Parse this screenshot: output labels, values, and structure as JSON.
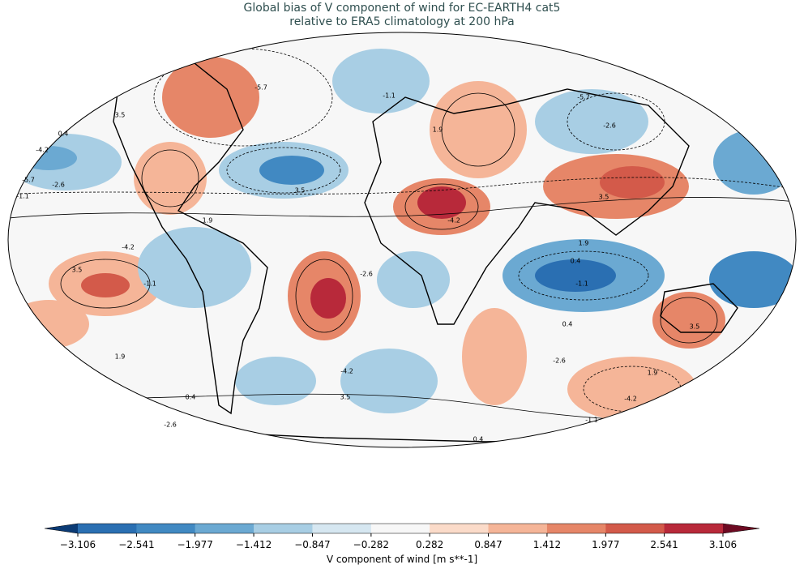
{
  "title": "Global bias of V component of wind for EC-EARTH4 cat5",
  "subtitle": "relative to ERA5 climatology at 200 hPa",
  "colorbar": {
    "label": "V component of wind [m s**-1]",
    "ticks": [
      {
        "value": -3.106,
        "label": "−3.106"
      },
      {
        "value": -2.541,
        "label": "−2.541"
      },
      {
        "value": -1.977,
        "label": "−1.977"
      },
      {
        "value": -1.412,
        "label": "−1.412"
      },
      {
        "value": -0.847,
        "label": "−0.847"
      },
      {
        "value": -0.282,
        "label": "−0.282"
      },
      0.282,
      0.847,
      1.412,
      1.977,
      2.541,
      3.106
    ],
    "colors": [
      "#2a6fb2",
      "#4189c2",
      "#6ba9d2",
      "#a8cee4",
      "#d6e7f1",
      "#f7f7f7",
      "#fbdbc9",
      "#f5b598",
      "#e68668",
      "#d35a4a",
      "#b8293a"
    ],
    "extend_low_color": "#0b3b75",
    "extend_high_color": "#6d0a22"
  },
  "contour_labels": [
    "3.5",
    "0.4",
    "-4.2",
    "-5.7",
    "-1.1",
    "-2.6",
    "1.9",
    "3.5",
    "-4.2",
    "-1.1",
    "1.9",
    "0.4",
    "3.5",
    "-2.6",
    "-4.2",
    "-5.7",
    "-1.1",
    "3.5",
    "1.9",
    "-4.2",
    "-5.7",
    "-2.6",
    "3.5",
    "0.4",
    "-1.1",
    "1.9",
    "0.4",
    "-2.6",
    "-4.2",
    "1.9",
    "-1.1",
    "0.4",
    "3.5",
    "-2.6"
  ]
}
